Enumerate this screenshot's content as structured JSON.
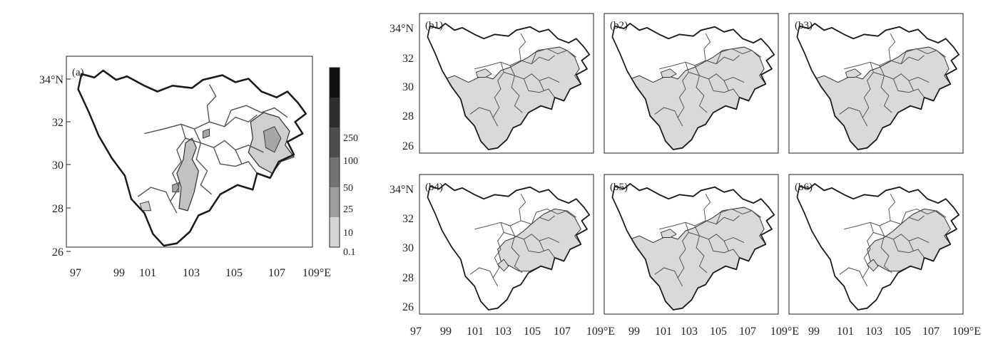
{
  "main_panel": {
    "label": "(a)",
    "y_ticks": [
      "34°N",
      "32",
      "30",
      "28",
      "26"
    ],
    "x_ticks": [
      "97",
      "99",
      "101",
      "103",
      "105",
      "107",
      "109°E"
    ]
  },
  "colorbar": {
    "levels": [
      "250",
      "100",
      "50",
      "25",
      "10",
      "0.1"
    ],
    "colors": [
      "#111111",
      "#2e2e2e",
      "#4d4d4d",
      "#737373",
      "#9e9e9e",
      "#d6d6d6"
    ]
  },
  "small_panels": [
    {
      "label": "(b1)",
      "fill": "large"
    },
    {
      "label": "(b2)",
      "fill": "large"
    },
    {
      "label": "(b3)",
      "fill": "large"
    },
    {
      "label": "(b4)",
      "fill": "east"
    },
    {
      "label": "(b5)",
      "fill": "large"
    },
    {
      "label": "(b6)",
      "fill": "east"
    }
  ],
  "small_axes": {
    "y_ticks": [
      "34°N",
      "32",
      "30",
      "28",
      "26"
    ],
    "x_ticks_a": [
      "97",
      "99",
      "101",
      "103",
      "105",
      "107",
      "109°E"
    ],
    "x_ticks_b": [
      "99",
      "101",
      "103",
      "105",
      "107",
      "109°E"
    ],
    "x_ticks_c": [
      "99",
      "101",
      "103",
      "105",
      "107",
      "109°E"
    ]
  },
  "colors": {
    "fill_light": "#d9d9d9",
    "fill_med": "#a6a6a6",
    "outline": "#1a1a1a",
    "river": "#666666"
  }
}
